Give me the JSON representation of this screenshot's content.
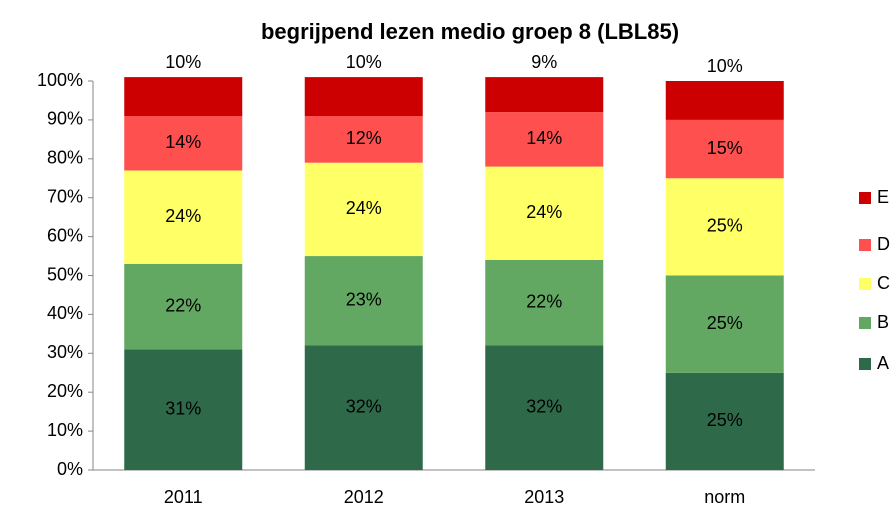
{
  "chart_data": {
    "type": "stacked_bar",
    "title": "begrijpend lezen medio groep 8 (LBL85)",
    "categories": [
      "2011",
      "2012",
      "2013",
      "norm"
    ],
    "series": [
      {
        "name": "A",
        "color": "#2e6a4a",
        "values": [
          31,
          32,
          32,
          25
        ],
        "value_labels": [
          "31%",
          "32%",
          "32%",
          "25%"
        ]
      },
      {
        "name": "B",
        "color": "#63a862",
        "values": [
          22,
          23,
          22,
          25
        ],
        "value_labels": [
          "22%",
          "23%",
          "22%",
          "25%"
        ]
      },
      {
        "name": "C",
        "color": "#ffff66",
        "values": [
          24,
          24,
          24,
          25
        ],
        "value_labels": [
          "24%",
          "24%",
          "24%",
          "25%"
        ]
      },
      {
        "name": "D",
        "color": "#ff5050",
        "values": [
          14,
          12,
          14,
          15
        ],
        "value_labels": [
          "14%",
          "12%",
          "14%",
          "15%"
        ]
      },
      {
        "name": "E",
        "color": "#cc0000",
        "values": [
          10,
          10,
          9,
          10
        ],
        "value_labels": [
          "10%",
          "10%",
          "9%",
          "10%"
        ]
      }
    ],
    "ylim": [
      0,
      100
    ],
    "yticks": [
      {
        "value": 0,
        "label": "0%"
      },
      {
        "value": 10,
        "label": "10%"
      },
      {
        "value": 20,
        "label": "20%"
      },
      {
        "value": 30,
        "label": "30%"
      },
      {
        "value": 40,
        "label": "40%"
      },
      {
        "value": 50,
        "label": "50%"
      },
      {
        "value": 60,
        "label": "60%"
      },
      {
        "value": 70,
        "label": "70%"
      },
      {
        "value": 80,
        "label": "80%"
      },
      {
        "value": 90,
        "label": "90%"
      },
      {
        "value": 100,
        "label": "100%"
      }
    ],
    "legend": "right"
  }
}
